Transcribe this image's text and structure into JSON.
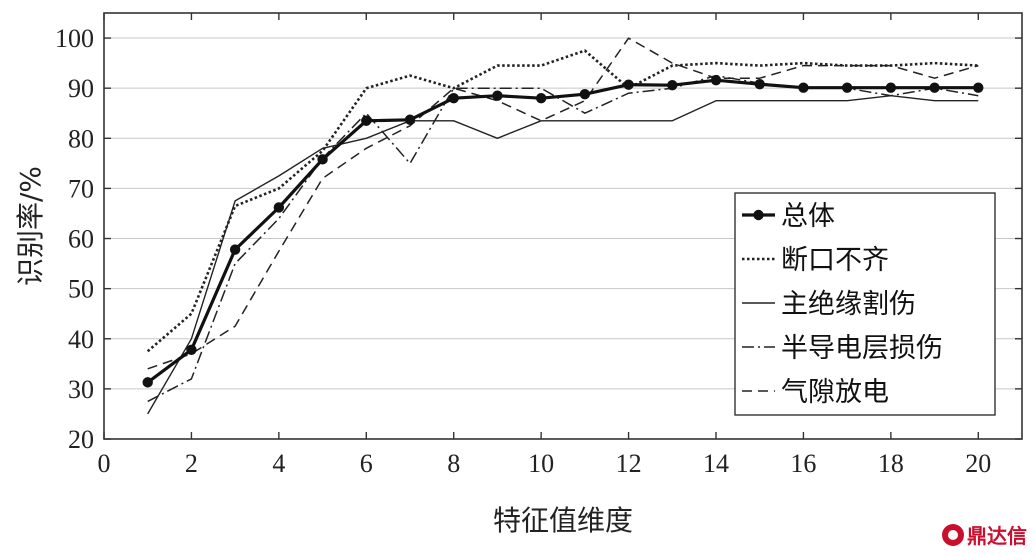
{
  "chart_data": {
    "type": "line",
    "xlabel": "特征值维度",
    "ylabel": "识别率/%",
    "xlim": [
      0,
      21
    ],
    "ylim": [
      20,
      105
    ],
    "xticks": [
      0,
      2,
      4,
      6,
      8,
      10,
      12,
      14,
      16,
      18,
      20
    ],
    "yticks": [
      20,
      30,
      40,
      50,
      60,
      70,
      80,
      90,
      100
    ],
    "grid": "horizontal",
    "legend_position": "right",
    "x": [
      1,
      2,
      3,
      4,
      5,
      6,
      7,
      8,
      9,
      10,
      11,
      12,
      13,
      14,
      15,
      16,
      17,
      18,
      19,
      20
    ],
    "series": [
      {
        "name": "总体",
        "style": "solid-bold-markers",
        "values": [
          31.3,
          37.8,
          57.8,
          66.2,
          75.8,
          83.5,
          83.7,
          88.0,
          88.5,
          88.0,
          88.8,
          90.7,
          90.6,
          91.6,
          90.8,
          90.1,
          90.1,
          90.1,
          90.1,
          90.1
        ]
      },
      {
        "name": "断口不齐",
        "style": "dotted",
        "values": [
          37.5,
          45.0,
          66.5,
          70.0,
          77.5,
          90.0,
          92.5,
          90.0,
          94.5,
          94.5,
          97.5,
          90.0,
          94.5,
          95.0,
          94.5,
          95.0,
          94.5,
          94.5,
          95.0,
          94.5
        ]
      },
      {
        "name": "主绝缘割伤",
        "style": "solid-thin",
        "values": [
          25.0,
          40.0,
          67.5,
          72.5,
          78.0,
          80.0,
          83.5,
          83.5,
          80.0,
          83.5,
          83.5,
          83.5,
          83.5,
          87.5,
          87.5,
          87.5,
          87.5,
          88.5,
          87.5,
          87.5
        ]
      },
      {
        "name": "半导电层损伤",
        "style": "dash-dot",
        "values": [
          27.5,
          32.0,
          55.0,
          64.0,
          76.0,
          85.0,
          75.0,
          90.0,
          90.0,
          90.0,
          85.0,
          89.0,
          90.0,
          92.5,
          91.0,
          90.0,
          90.0,
          88.5,
          90.0,
          88.5
        ]
      },
      {
        "name": "气隙放电",
        "style": "dashed",
        "values": [
          34.0,
          37.0,
          42.5,
          57.5,
          72.0,
          78.0,
          82.5,
          90.0,
          87.5,
          83.5,
          87.5,
          100.0,
          95.0,
          92.0,
          92.0,
          94.5,
          94.5,
          94.5,
          92.0,
          94.5
        ]
      }
    ]
  },
  "watermark": {
    "text": "鼎达信"
  }
}
